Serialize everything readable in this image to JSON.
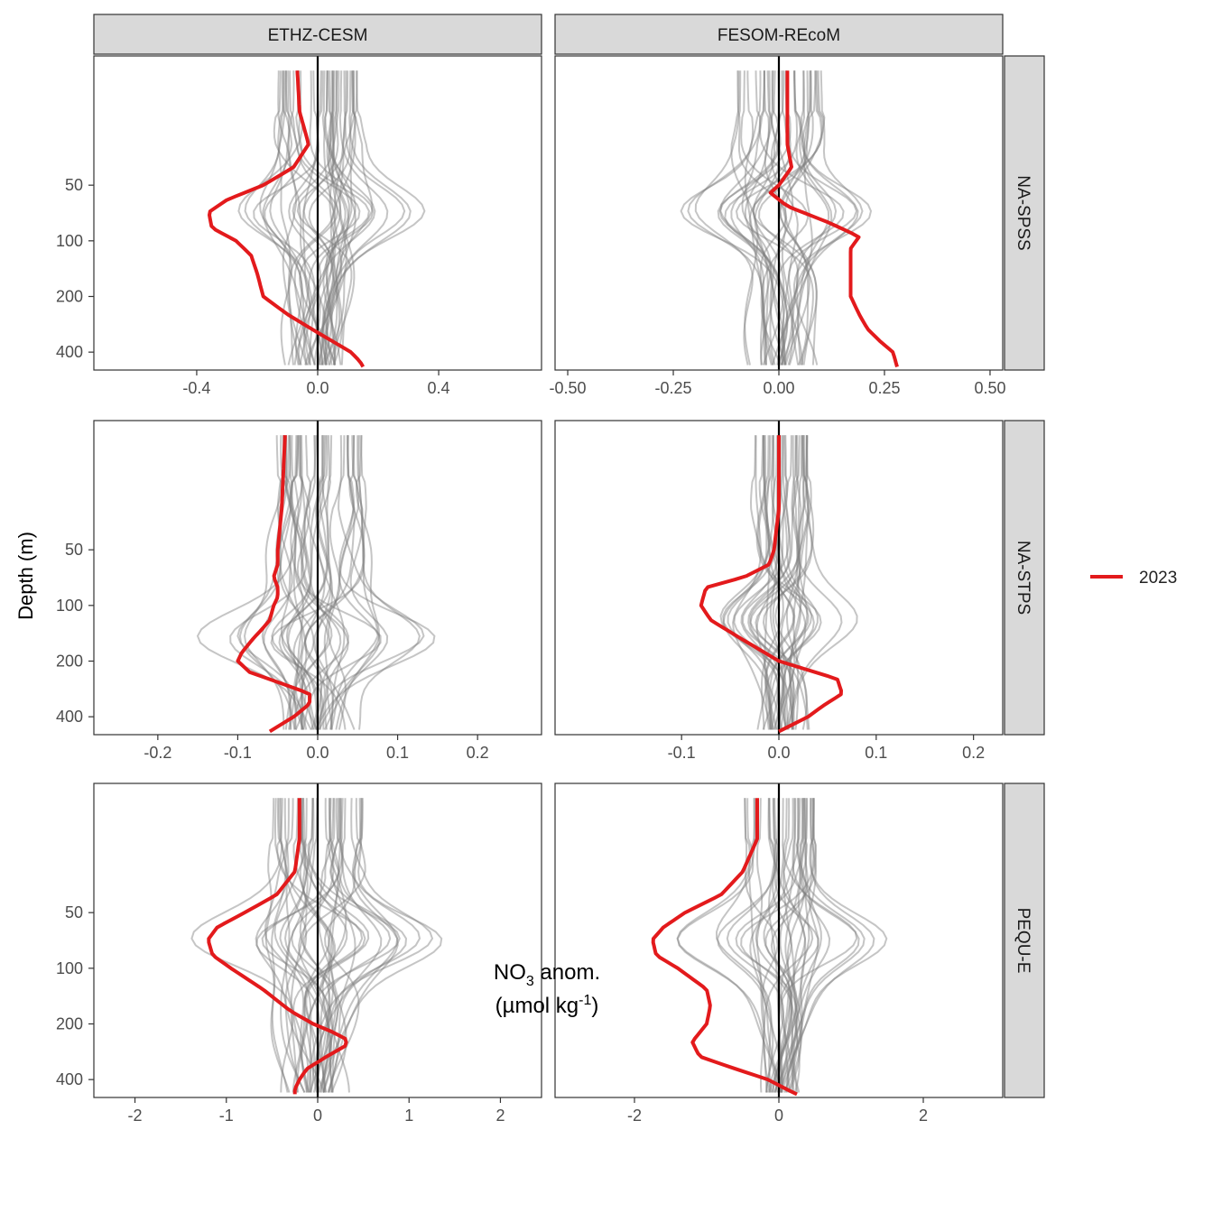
{
  "figure": {
    "y_axis_label": "Depth (m)",
    "x_axis_label_main": "NO",
    "x_axis_label_sub": "3",
    "x_axis_label_rest": " anom.",
    "x_axis_unit_pre": "(µmol kg",
    "x_axis_unit_sup": "-1",
    "x_axis_unit_post": ")",
    "legend": {
      "label": "2023",
      "color": "#e31a1c"
    },
    "ensemble_color": "#7f7f7f",
    "highlight_color": "#e31a1c"
  },
  "chart_data": {
    "type": "line",
    "y_axis": {
      "label": "Depth (m)",
      "scale": "log",
      "reversed": true,
      "range": [
        10,
        500
      ],
      "ticks": [
        50,
        100,
        200,
        400
      ]
    },
    "columns": [
      "ETHZ-CESM",
      "FESOM-REcoM"
    ],
    "rows": [
      "NA-SPSS",
      "NA-STPS",
      "PEQU-E"
    ],
    "panels": [
      {
        "model": "ETHZ-CESM",
        "region": "NA-SPSS",
        "xlim": [
          -0.74,
          0.74
        ],
        "xticks": [
          -0.4,
          0.0,
          0.4
        ],
        "xtick_labels": [
          "-0.4",
          "0.0",
          "0.4"
        ],
        "ensemble_count": 40,
        "ensemble_amplitude": 0.26,
        "ensemble_dominant_depth": 70,
        "series_2023": {
          "name": "2023",
          "depth": [
            10,
            20,
            30,
            40,
            50,
            60,
            70,
            85,
            100,
            120,
            150,
            200,
            250,
            300,
            350,
            400,
            450,
            480
          ],
          "value": [
            -0.07,
            -0.06,
            -0.03,
            -0.08,
            -0.18,
            -0.3,
            -0.36,
            -0.35,
            -0.27,
            -0.22,
            -0.2,
            -0.18,
            -0.1,
            -0.02,
            0.05,
            0.11,
            0.14,
            0.15
          ]
        }
      },
      {
        "model": "FESOM-REcoM",
        "region": "NA-SPSS",
        "xlim": [
          -0.53,
          0.53
        ],
        "xticks": [
          -0.5,
          -0.25,
          0.0,
          0.25,
          0.5
        ],
        "xtick_labels": [
          "-0.50",
          "-0.25",
          "0.00",
          "0.25",
          "0.50"
        ],
        "ensemble_count": 35,
        "ensemble_amplitude": 0.2,
        "ensemble_dominant_depth": 70,
        "series_2023": {
          "name": "2023",
          "depth": [
            10,
            20,
            30,
            40,
            50,
            55,
            65,
            80,
            95,
            110,
            150,
            200,
            250,
            300,
            350,
            400,
            480
          ],
          "value": [
            0.02,
            0.02,
            0.02,
            0.03,
            0.0,
            -0.02,
            0.02,
            0.12,
            0.19,
            0.17,
            0.17,
            0.17,
            0.19,
            0.21,
            0.24,
            0.27,
            0.28
          ]
        }
      },
      {
        "model": "ETHZ-CESM",
        "region": "NA-STPS",
        "xlim": [
          -0.28,
          0.28
        ],
        "xticks": [
          -0.2,
          -0.1,
          0.0,
          0.1,
          0.2
        ],
        "xtick_labels": [
          "-0.2",
          "-0.1",
          "0.0",
          "0.1",
          "0.2"
        ],
        "ensemble_count": 40,
        "ensemble_amplitude": 0.11,
        "ensemble_dominant_depth": 150,
        "series_2023": {
          "name": "2023",
          "depth": [
            10,
            30,
            50,
            60,
            70,
            80,
            90,
            100,
            120,
            135,
            150,
            180,
            200,
            230,
            260,
            300,
            340,
            400,
            480
          ],
          "value": [
            -0.04,
            -0.045,
            -0.05,
            -0.05,
            -0.055,
            -0.05,
            -0.05,
            -0.055,
            -0.06,
            -0.07,
            -0.08,
            -0.095,
            -0.1,
            -0.085,
            -0.05,
            -0.01,
            -0.01,
            -0.03,
            -0.06
          ]
        }
      },
      {
        "model": "FESOM-REcoM",
        "region": "NA-STPS",
        "xlim": [
          -0.23,
          0.23
        ],
        "xticks": [
          -0.1,
          0.0,
          0.1,
          0.2
        ],
        "xtick_labels": [
          "-0.1",
          "0.0",
          "0.1",
          "0.2"
        ],
        "ensemble_count": 35,
        "ensemble_amplitude": 0.06,
        "ensemble_dominant_depth": 120,
        "series_2023": {
          "name": "2023",
          "depth": [
            10,
            30,
            50,
            60,
            70,
            80,
            100,
            120,
            150,
            200,
            250,
            300,
            350,
            400,
            480
          ],
          "value": [
            0.0,
            0.0,
            -0.005,
            -0.01,
            -0.035,
            -0.075,
            -0.08,
            -0.07,
            -0.04,
            0.0,
            0.06,
            0.065,
            0.045,
            0.03,
            0.0
          ]
        }
      },
      {
        "model": "ETHZ-CESM",
        "region": "PEQU-E",
        "xlim": [
          -2.45,
          2.45
        ],
        "xticks": [
          -2,
          -1,
          0,
          1,
          2
        ],
        "xtick_labels": [
          "-2",
          "-1",
          "0",
          "1",
          "2"
        ],
        "ensemble_count": 40,
        "ensemble_amplitude": 1.0,
        "ensemble_dominant_depth": 70,
        "series_2023": {
          "name": "2023",
          "depth": [
            10,
            20,
            30,
            40,
            50,
            60,
            70,
            85,
            100,
            130,
            170,
            200,
            220,
            240,
            260,
            300,
            350,
            400,
            450,
            480
          ],
          "value": [
            -0.2,
            -0.2,
            -0.25,
            -0.45,
            -0.8,
            -1.1,
            -1.2,
            -1.15,
            -0.95,
            -0.6,
            -0.3,
            -0.05,
            0.15,
            0.3,
            0.32,
            0.1,
            -0.12,
            -0.2,
            -0.25,
            -0.25
          ]
        }
      },
      {
        "model": "FESOM-REcoM",
        "region": "PEQU-E",
        "xlim": [
          -3.1,
          3.1
        ],
        "xticks": [
          -2,
          0,
          2
        ],
        "xtick_labels": [
          "-2",
          "0",
          "2"
        ],
        "ensemble_count": 35,
        "ensemble_amplitude": 1.0,
        "ensemble_dominant_depth": 70,
        "series_2023": {
          "name": "2023",
          "depth": [
            10,
            20,
            30,
            40,
            50,
            60,
            70,
            85,
            100,
            130,
            160,
            200,
            250,
            300,
            350,
            400,
            450,
            480
          ],
          "value": [
            -0.3,
            -0.3,
            -0.5,
            -0.8,
            -1.3,
            -1.6,
            -1.75,
            -1.7,
            -1.4,
            -1.0,
            -0.95,
            -1.0,
            -1.2,
            -1.1,
            -0.6,
            -0.15,
            0.1,
            0.25
          ]
        }
      }
    ]
  }
}
